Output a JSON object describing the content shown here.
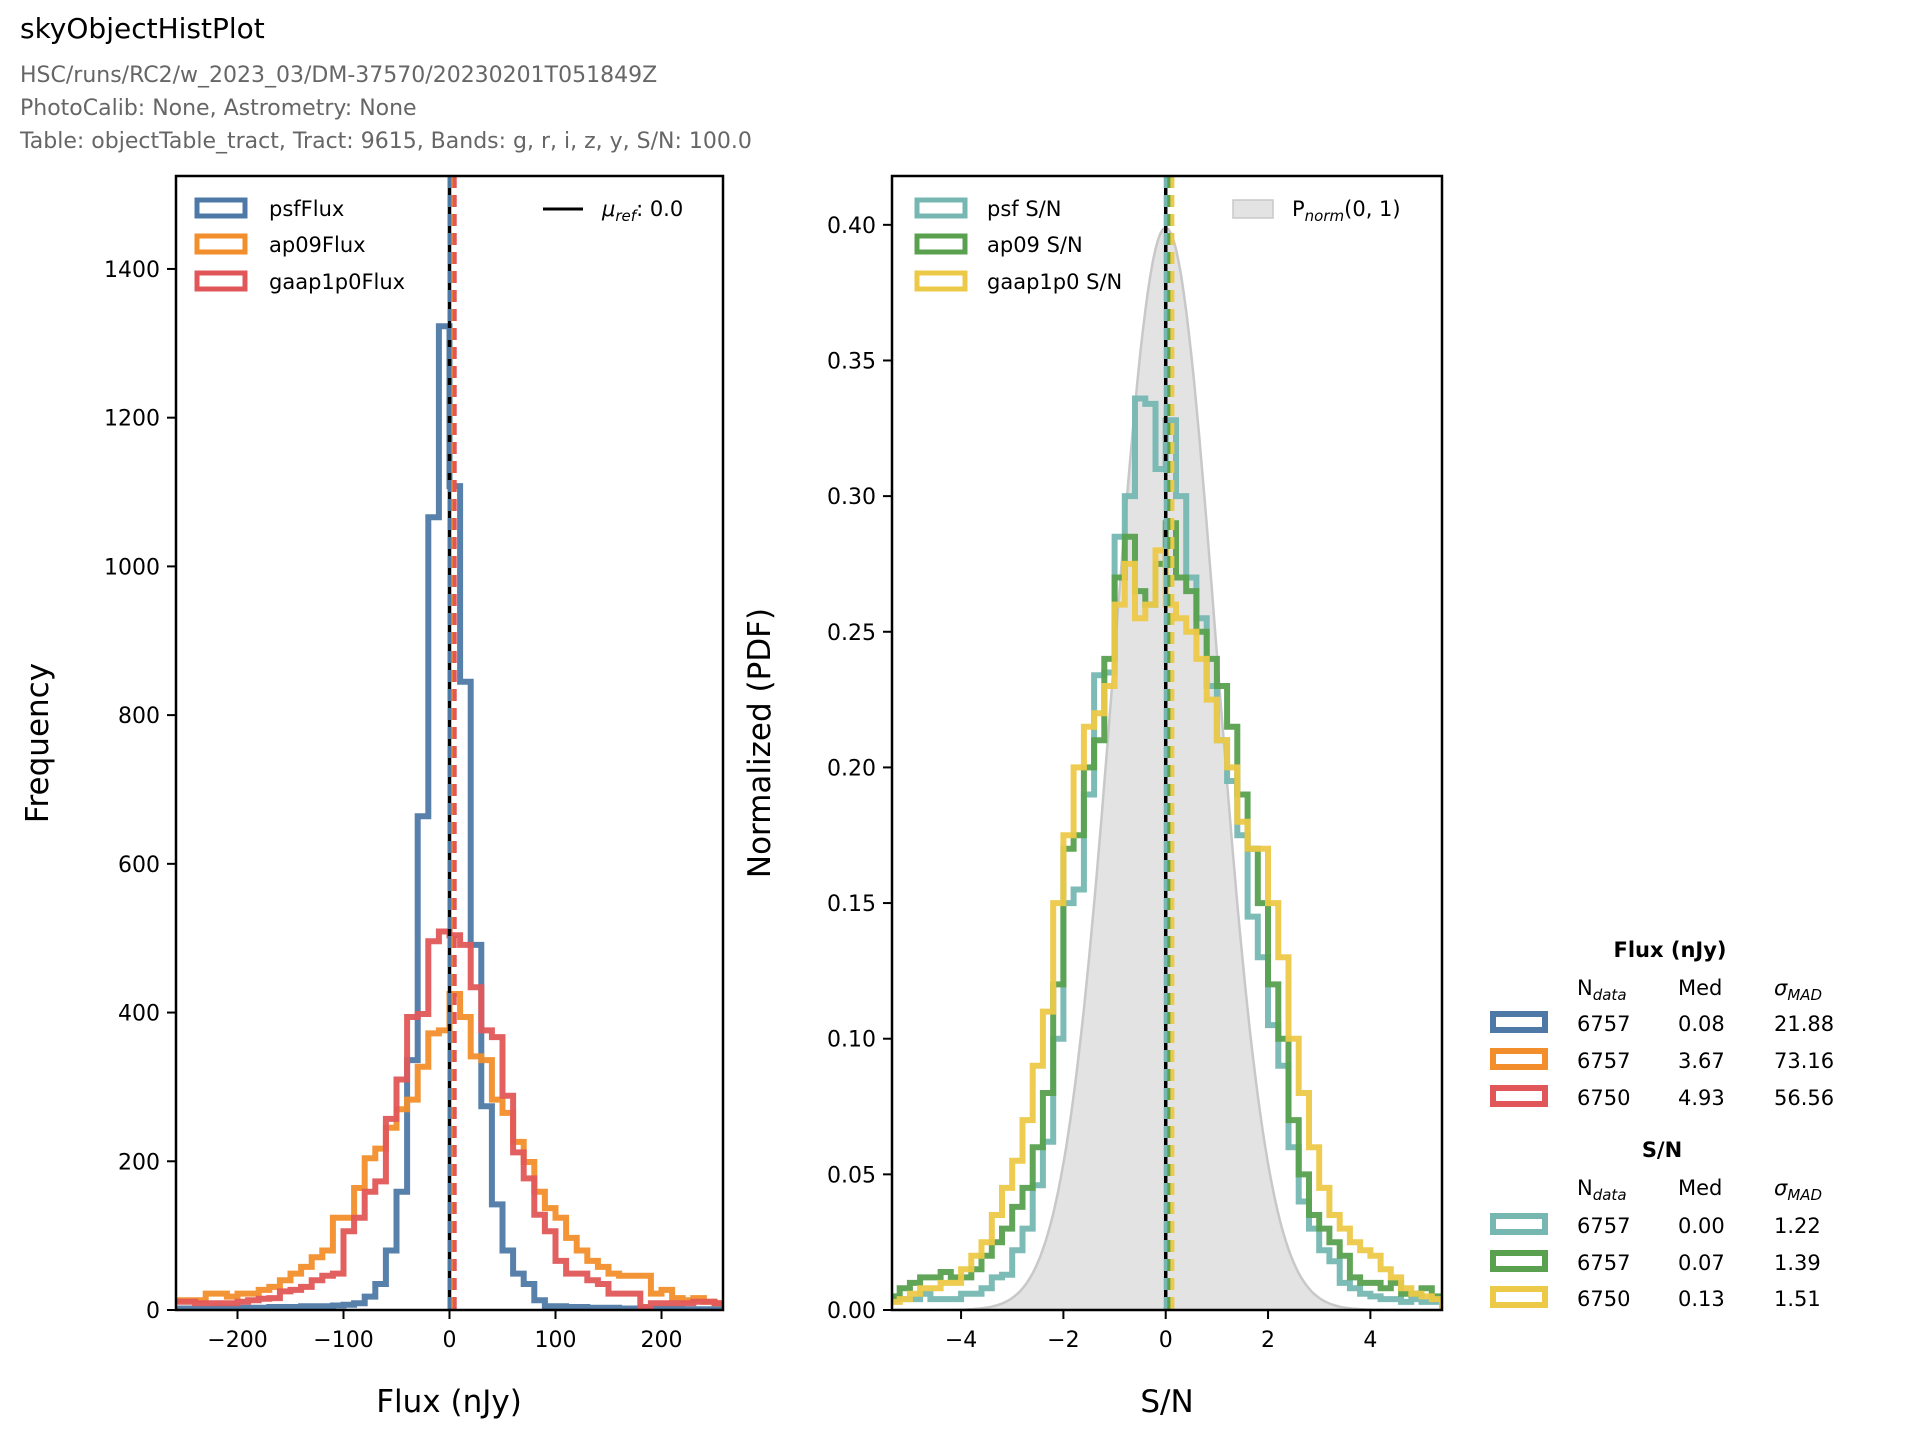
{
  "header": {
    "title": "skyObjectHistPlot",
    "lines": [
      "HSC/runs/RC2/w_2023_03/DM-37570/20230201T051849Z",
      "PhotoCalib: None, Astrometry: None",
      "Table: objectTable_tract, Tract: 9615, Bands: g, r, i, z, y, S/N: 100.0"
    ]
  },
  "colors": {
    "psfFlux": "#4e79a7",
    "ap09Flux": "#f28e2b",
    "gaap1p0Flux": "#e15759",
    "psfSN": "#76b7b2",
    "ap09SN": "#59a14f",
    "gaap1p0SN": "#edc948",
    "norm_fill": "#e3e3e3",
    "norm_edge": "#c8c8c8"
  },
  "legend_left": {
    "items": [
      "psfFlux",
      "ap09Flux",
      "gaap1p0Flux"
    ],
    "ref": {
      "symbol": "μ",
      "sub": "ref",
      "suffix": ": 0.0"
    }
  },
  "legend_right": {
    "items": [
      "psf S/N",
      "ap09 S/N",
      "gaap1p0 S/N"
    ],
    "norm": {
      "symbol": "P",
      "sub": "norm",
      "suffix": "(0, 1)"
    }
  },
  "stats_table": {
    "flux_title": "Flux (nJy)",
    "sn_title": "S/N",
    "headers": {
      "n": "N",
      "n_sub": "data",
      "med": "Med",
      "sigma": "σ",
      "sigma_sub": "MAD"
    },
    "flux_rows": [
      {
        "n": "6757",
        "med": "0.08",
        "sigma": "21.88"
      },
      {
        "n": "6757",
        "med": "3.67",
        "sigma": "73.16"
      },
      {
        "n": "6750",
        "med": "4.93",
        "sigma": "56.56"
      }
    ],
    "sn_rows": [
      {
        "n": "6757",
        "med": "0.00",
        "sigma": "1.22"
      },
      {
        "n": "6757",
        "med": "0.07",
        "sigma": "1.39"
      },
      {
        "n": "6750",
        "med": "0.13",
        "sigma": "1.51"
      }
    ]
  },
  "chart_data": [
    {
      "type": "histogram-step",
      "xlabel": "Flux (nJy)",
      "ylabel": "Frequency",
      "xlim": [
        -258,
        258
      ],
      "ylim": [
        0,
        1525
      ],
      "xticks": [
        -200,
        -100,
        0,
        100,
        200
      ],
      "xtick_labels": [
        "−200",
        "−100",
        "0",
        "100",
        "200"
      ],
      "yticks": [
        0,
        200,
        400,
        600,
        800,
        1000,
        1200,
        1400
      ],
      "ytick_labels": [
        "0",
        "200",
        "400",
        "600",
        "800",
        "1000",
        "1200",
        "1400"
      ],
      "bin_start": -260,
      "bin_width": 10,
      "reference_line": 0.0,
      "legend_placement": "upper-left",
      "series": [
        {
          "name": "psfFlux",
          "median": 0.08,
          "values": [
            2,
            2,
            2,
            2,
            3,
            3,
            3,
            3,
            3,
            4,
            4,
            4,
            5,
            5,
            5,
            6,
            7,
            9,
            18,
            35,
            80,
            159,
            336,
            664,
            1066,
            1323,
            1108,
            845,
            491,
            274,
            142,
            80,
            49,
            35,
            13,
            5,
            5,
            4,
            4,
            3,
            3,
            3,
            2,
            2,
            2,
            2,
            2,
            2,
            1,
            1,
            1,
            1
          ]
        },
        {
          "name": "ap09Flux",
          "median": 3.67,
          "values": [
            13,
            13,
            13,
            22,
            22,
            18,
            22,
            22,
            27,
            31,
            40,
            49,
            58,
            71,
            80,
            124,
            124,
            164,
            204,
            217,
            245,
            270,
            283,
            327,
            372,
            376,
            425,
            394,
            341,
            336,
            283,
            265,
            226,
            199,
            159,
            137,
            124,
            97,
            80,
            66,
            58,
            49,
            46,
            46,
            46,
            22,
            27,
            16,
            13,
            16,
            11,
            9
          ]
        },
        {
          "name": "gaap1p0Flux",
          "median": 4.93,
          "values": [
            11,
            11,
            9,
            9,
            9,
            9,
            11,
            13,
            15,
            16,
            25,
            27,
            31,
            40,
            46,
            49,
            106,
            124,
            159,
            173,
            257,
            310,
            394,
            398,
            496,
            509,
            504,
            491,
            434,
            376,
            367,
            288,
            212,
            177,
            128,
            106,
            66,
            49,
            49,
            40,
            35,
            22,
            22,
            22,
            4,
            9,
            9,
            9,
            9,
            11,
            11,
            9
          ]
        }
      ]
    },
    {
      "type": "histogram-step",
      "xlabel": "S/N",
      "ylabel": "Normalized (PDF)",
      "xlim": [
        -5.35,
        5.4
      ],
      "ylim": [
        0,
        0.418
      ],
      "xticks": [
        -4,
        -2,
        0,
        2,
        4
      ],
      "xtick_labels": [
        "−4",
        "−2",
        "0",
        "2",
        "4"
      ],
      "yticks": [
        0,
        0.05,
        0.1,
        0.15,
        0.2,
        0.25,
        0.3,
        0.35,
        0.4
      ],
      "ytick_labels": [
        "0.00",
        "0.05",
        "0.10",
        "0.15",
        "0.20",
        "0.25",
        "0.30",
        "0.35",
        "0.40"
      ],
      "bin_start": -5.4,
      "bin_width": 0.2,
      "reference_line": 0.0,
      "reference_pdf": {
        "name": "Pnorm(0,1)",
        "mean": 0,
        "sigma": 1
      },
      "legend_placement": "upper-left",
      "series": [
        {
          "name": "psf S/N",
          "median": 0.0,
          "values": [
            0.004,
            0.004,
            0.004,
            0.006,
            0.004,
            0.004,
            0.004,
            0.006,
            0.006,
            0.008,
            0.012,
            0.013,
            0.022,
            0.03,
            0.046,
            0.062,
            0.1,
            0.15,
            0.155,
            0.19,
            0.234,
            0.235,
            0.285,
            0.3,
            0.336,
            0.334,
            0.31,
            0.328,
            0.3,
            0.27,
            0.255,
            0.23,
            0.21,
            0.195,
            0.175,
            0.145,
            0.13,
            0.105,
            0.09,
            0.06,
            0.04,
            0.03,
            0.022,
            0.018,
            0.01,
            0.008,
            0.006,
            0.005,
            0.004,
            0.004,
            0.003,
            0.004,
            0.003,
            0.003
          ]
        },
        {
          "name": "ap09 S/N",
          "median": 0.07,
          "values": [
            0.005,
            0.008,
            0.01,
            0.012,
            0.012,
            0.014,
            0.012,
            0.012,
            0.015,
            0.02,
            0.025,
            0.03,
            0.038,
            0.045,
            0.06,
            0.08,
            0.12,
            0.17,
            0.175,
            0.2,
            0.21,
            0.24,
            0.27,
            0.285,
            0.265,
            0.26,
            0.275,
            0.29,
            0.27,
            0.265,
            0.25,
            0.24,
            0.23,
            0.215,
            0.19,
            0.17,
            0.15,
            0.12,
            0.1,
            0.07,
            0.05,
            0.035,
            0.03,
            0.025,
            0.02,
            0.012,
            0.01,
            0.01,
            0.008,
            0.01,
            0.006,
            0.006,
            0.008,
            0.005
          ]
        },
        {
          "name": "gaap1p0 S/N",
          "median": 0.13,
          "values": [
            0.003,
            0.004,
            0.006,
            0.008,
            0.008,
            0.01,
            0.01,
            0.015,
            0.02,
            0.025,
            0.035,
            0.045,
            0.055,
            0.07,
            0.09,
            0.11,
            0.15,
            0.175,
            0.2,
            0.215,
            0.22,
            0.23,
            0.26,
            0.275,
            0.255,
            0.26,
            0.28,
            0.26,
            0.255,
            0.25,
            0.24,
            0.225,
            0.21,
            0.2,
            0.18,
            0.17,
            0.17,
            0.15,
            0.13,
            0.1,
            0.08,
            0.06,
            0.045,
            0.035,
            0.03,
            0.025,
            0.022,
            0.02,
            0.015,
            0.012,
            0.008,
            0.006,
            0.005,
            0.004
          ]
        }
      ]
    }
  ]
}
